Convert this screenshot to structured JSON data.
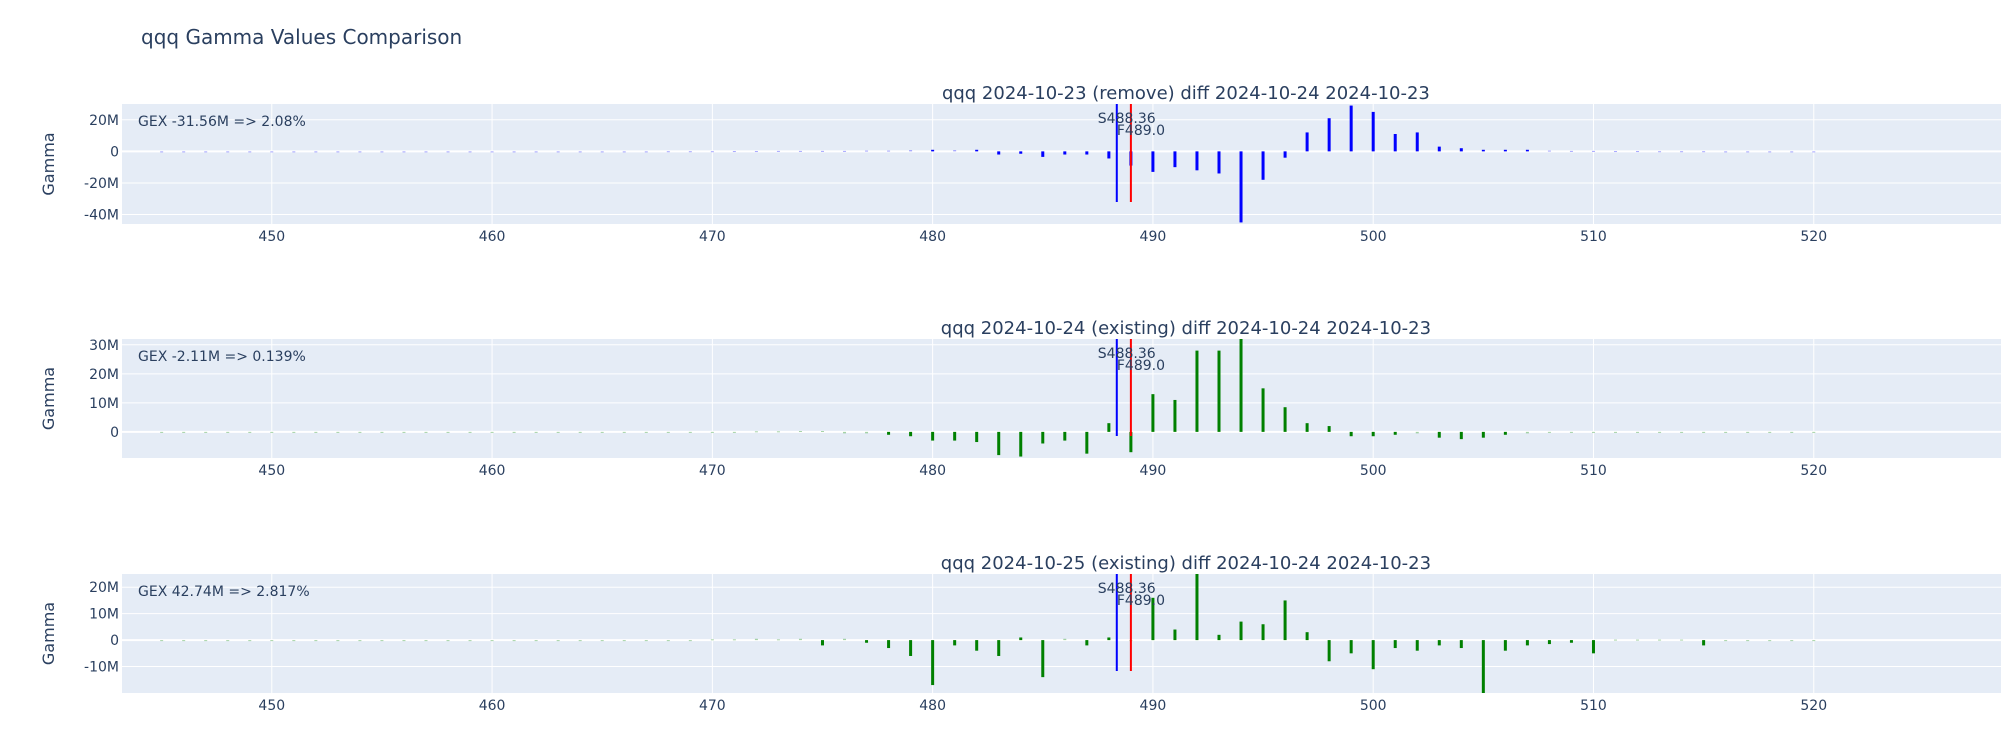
{
  "figure": {
    "title": "qqq Gamma Values Comparison"
  },
  "colors": {
    "plot_bg": "#e5ecf6",
    "grid": "#ffffff",
    "text": "#2a3f5f",
    "positive_bar_1": "#0000ff",
    "bars_2_3": "#008000",
    "spot_line": "#0000ff",
    "flip_line": "#ff0000"
  },
  "chart_data": [
    {
      "type": "bar",
      "title": "qqq 2024-10-23 (remove) diff 2024-10-24 2024-10-23",
      "xlabel": "",
      "ylabel": "Gamma",
      "xlim": [
        443.2,
        528.5
      ],
      "ylim": [
        -46,
        30
      ],
      "x_ticks": [
        450,
        460,
        470,
        480,
        490,
        500,
        510,
        520
      ],
      "y_ticks": [
        {
          "v": 20,
          "label": "20M"
        },
        {
          "v": 0,
          "label": "0"
        },
        {
          "v": -20,
          "label": "-20M"
        },
        {
          "v": -40,
          "label": "-40M"
        }
      ],
      "gex_annotation": "GEX -31.56M => 2.08%",
      "spot_label": "S488.36",
      "flip_label": "F489.0",
      "spot": 488.36,
      "flip": 489.0,
      "bar_color": "#0000ff",
      "units": "M",
      "x": [
        445,
        446,
        447,
        448,
        449,
        450,
        451,
        452,
        453,
        454,
        455,
        456,
        457,
        458,
        459,
        460,
        461,
        462,
        463,
        464,
        465,
        466,
        467,
        468,
        469,
        470,
        471,
        472,
        473,
        474,
        475,
        476,
        477,
        478,
        479,
        480,
        481,
        482,
        483,
        484,
        485,
        486,
        487,
        488,
        489,
        490,
        491,
        492,
        493,
        494,
        495,
        496,
        497,
        498,
        499,
        500,
        501,
        502,
        503,
        504,
        505,
        506,
        507,
        508,
        509,
        510,
        511,
        512,
        513,
        514,
        515,
        516,
        517,
        518,
        519,
        520
      ],
      "values": [
        0,
        0,
        0,
        0,
        0,
        0,
        0,
        0,
        0,
        0,
        0,
        0,
        0,
        0,
        0,
        0,
        0,
        0,
        0,
        0,
        0,
        0,
        0,
        0.1,
        0.1,
        0.1,
        0.2,
        0.2,
        0.3,
        0.3,
        0.3,
        0.3,
        0.5,
        0.5,
        0.8,
        1,
        0.8,
        1,
        -2,
        -1.5,
        -3.5,
        -2,
        -2,
        -4.5,
        -9,
        -13,
        -10,
        -12,
        -14,
        -45,
        -18,
        -4,
        12,
        21,
        29,
        25,
        11,
        12,
        3,
        2,
        1,
        1,
        1,
        0.5,
        0.3,
        0.3,
        0.2,
        0.2,
        0.1,
        0.1,
        0.1,
        0,
        0,
        0,
        0,
        0
      ]
    },
    {
      "type": "bar",
      "title": "qqq 2024-10-24 (existing) diff 2024-10-24 2024-10-23",
      "xlabel": "",
      "ylabel": "Gamma",
      "xlim": [
        443.2,
        528.5
      ],
      "ylim": [
        -9,
        32
      ],
      "x_ticks": [
        450,
        460,
        470,
        480,
        490,
        500,
        510,
        520
      ],
      "y_ticks": [
        {
          "v": 30,
          "label": "30M"
        },
        {
          "v": 20,
          "label": "20M"
        },
        {
          "v": 10,
          "label": "10M"
        },
        {
          "v": 0,
          "label": "0"
        }
      ],
      "gex_annotation": "GEX -2.11M => 0.139%",
      "spot_label": "S488.36",
      "flip_label": "F489.0",
      "spot": 488.36,
      "flip": 489.0,
      "bar_color": "#008000",
      "units": "M",
      "x": [
        445,
        446,
        447,
        448,
        449,
        450,
        451,
        452,
        453,
        454,
        455,
        456,
        457,
        458,
        459,
        460,
        461,
        462,
        463,
        464,
        465,
        466,
        467,
        468,
        469,
        470,
        471,
        472,
        473,
        474,
        475,
        476,
        477,
        478,
        479,
        480,
        481,
        482,
        483,
        484,
        485,
        486,
        487,
        488,
        489,
        490,
        491,
        492,
        493,
        494,
        495,
        496,
        497,
        498,
        499,
        500,
        501,
        502,
        503,
        504,
        505,
        506,
        507,
        508,
        509,
        510,
        511,
        512,
        513,
        514,
        515,
        516,
        517,
        518,
        519,
        520
      ],
      "values": [
        0,
        0,
        0,
        0,
        0,
        0,
        0,
        0,
        0,
        0,
        0,
        0,
        0,
        0,
        0,
        0,
        0,
        0,
        0,
        0,
        0,
        0,
        0,
        0,
        0,
        0,
        0,
        0.2,
        0.2,
        0.3,
        0.3,
        -0.5,
        -0.5,
        -1,
        -1.5,
        -3,
        -3,
        -3.5,
        -8,
        -8.5,
        -4,
        -3,
        -7.5,
        3,
        -7,
        13,
        11,
        28,
        28,
        32,
        15,
        8.5,
        3,
        2,
        -1.5,
        -1.5,
        -1,
        -0.5,
        -2,
        -2.5,
        -2,
        -1,
        -0.5,
        -0.3,
        -0.2,
        -0.2,
        -0.1,
        -0.1,
        0,
        0,
        0,
        0,
        0,
        0,
        0,
        0
      ]
    },
    {
      "type": "bar",
      "title": "qqq 2024-10-25 (existing) diff 2024-10-24 2024-10-23",
      "xlabel": "",
      "ylabel": "Gamma",
      "xlim": [
        443.2,
        528.5
      ],
      "ylim": [
        -20,
        25
      ],
      "x_ticks": [
        450,
        460,
        470,
        480,
        490,
        500,
        510,
        520
      ],
      "y_ticks": [
        {
          "v": 20,
          "label": "20M"
        },
        {
          "v": 10,
          "label": "10M"
        },
        {
          "v": 0,
          "label": "0"
        },
        {
          "v": -10,
          "label": "-10M"
        }
      ],
      "gex_annotation": "GEX 42.74M => 2.817%",
      "spot_label": "S488.36",
      "flip_label": "F489.0",
      "spot": 488.36,
      "flip": 489.0,
      "bar_color": "#008000",
      "units": "M",
      "x": [
        445,
        446,
        447,
        448,
        449,
        450,
        451,
        452,
        453,
        454,
        455,
        456,
        457,
        458,
        459,
        460,
        461,
        462,
        463,
        464,
        465,
        466,
        467,
        468,
        469,
        470,
        471,
        472,
        473,
        474,
        475,
        476,
        477,
        478,
        479,
        480,
        481,
        482,
        483,
        484,
        485,
        486,
        487,
        488,
        489,
        490,
        491,
        492,
        493,
        494,
        495,
        496,
        497,
        498,
        499,
        500,
        501,
        502,
        503,
        504,
        505,
        506,
        507,
        508,
        509,
        510,
        511,
        512,
        513,
        514,
        515,
        516,
        517,
        518,
        519,
        520
      ],
      "values": [
        0,
        0,
        0,
        0,
        0,
        0,
        0,
        0,
        0,
        0,
        0,
        0,
        0,
        0,
        0,
        0,
        0,
        0,
        0,
        0,
        0,
        0,
        0,
        0,
        0,
        0.3,
        0.3,
        0.5,
        0.3,
        0.5,
        -2,
        0.5,
        -1,
        -3,
        -6,
        -17,
        -2,
        -4,
        -6,
        1,
        -14,
        0.5,
        -2,
        1,
        0,
        16,
        4,
        25,
        2,
        7,
        6,
        15,
        3,
        -8,
        -5,
        -11,
        -3,
        -4,
        -2,
        -3,
        -20,
        -4,
        -2,
        -1.5,
        -1,
        -5,
        0.2,
        0.2,
        0.2,
        0.2,
        -2,
        0,
        0,
        0,
        0,
        0
      ]
    }
  ]
}
